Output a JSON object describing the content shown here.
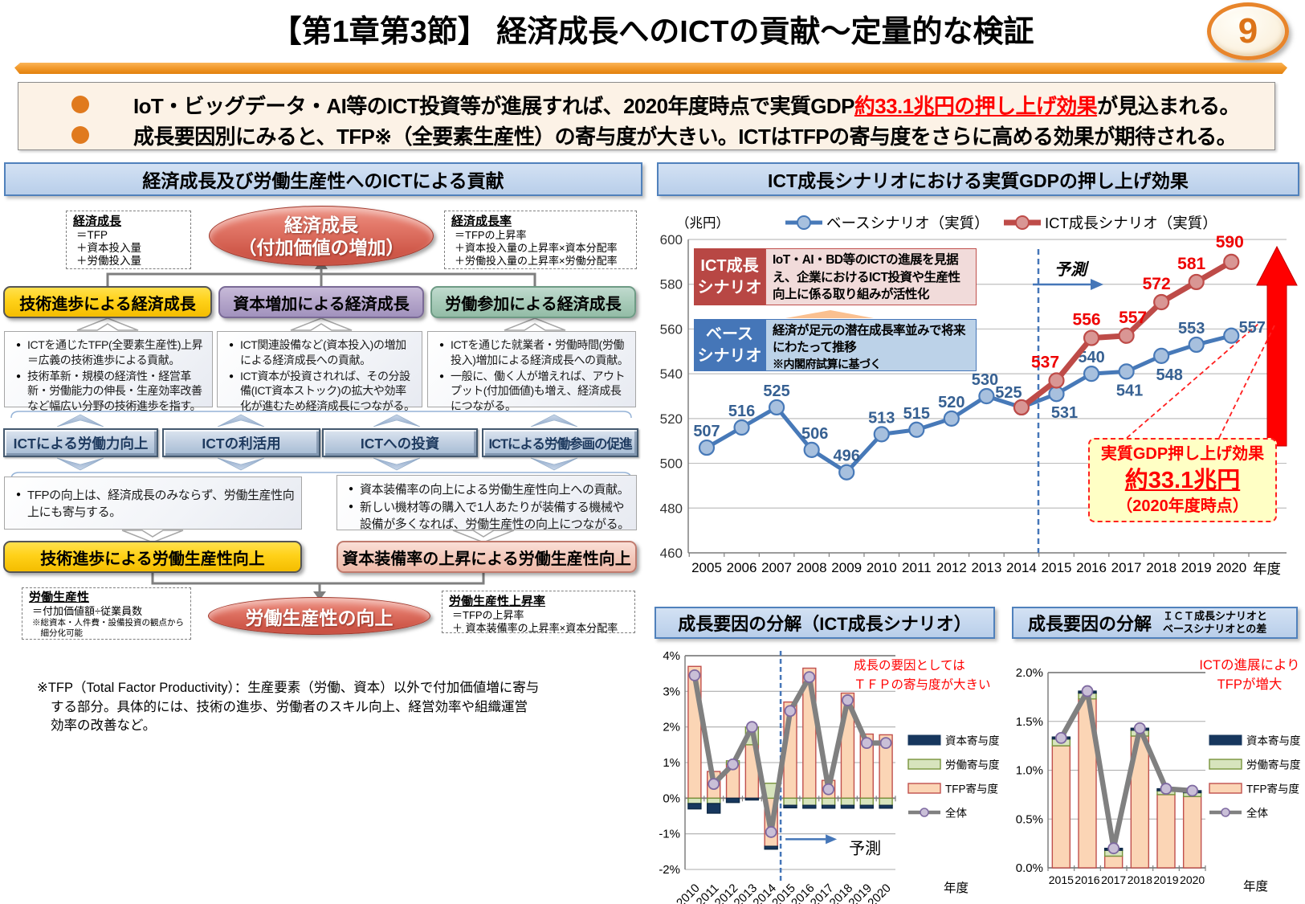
{
  "page": {
    "title": "【第1章第3節】 経済成長へのICTの貢献～定量的な検証",
    "page_number": "9"
  },
  "lead": {
    "bullet1_pre": "IoT・ビッグデータ・AI等のICT投資等が進展すれば、2020年度時点で実質GDP",
    "bullet1_highlight": "約33.1兆円の押し上げ効果",
    "bullet1_post": "が見込まれる。",
    "bullet2": "成長要因別にみると、TFP※（全要素生産性）の寄与度が大きい。ICTはTFPの寄与度をさらに高める効果が期待される。"
  },
  "left_panel": {
    "header": "経済成長及び労働生産性へのICTによる貢献",
    "formula_growth": {
      "title": "経済成長",
      "lines": [
        "＝TFP",
        "＋資本投入量",
        "＋労働投入量"
      ]
    },
    "formula_growth_rate": {
      "title": "経済成長率",
      "lines": [
        "＝TFPの上昇率",
        "＋資本投入量の上昇率×資本分配率",
        "＋労働投入量の上昇率×労働分配率"
      ]
    },
    "ellipse_top_line1": "経済成長",
    "ellipse_top_line2": "（付加価値の増加）",
    "factor_boxes": [
      {
        "label": "技術進歩による経済成長"
      },
      {
        "label": "資本増加による経済成長"
      },
      {
        "label": "労働参加による経済成長"
      }
    ],
    "detail_boxes": [
      {
        "items": [
          "ICTを通じたTFP(全要素生産性)上昇＝広義の技術進歩による貢献。",
          "技術革新・規模の経済性・経営革新・労働能力の伸長・生産効率改善など幅広い分野の技術進歩を指す。"
        ]
      },
      {
        "items": [
          "ICT関連設備など(資本投入)の増加による経済成長への貢献。",
          "ICT資本が投資されれば、その分設備(ICT資本ストック)の拡大や効率化が進むため経済成長につながる。"
        ]
      },
      {
        "items": [
          "ICTを通じた就業者・労働時間(労働投入)増加による経済成長への貢献。",
          "一般に、働く人が増えれば、アウトプット(付加価値)も増え、経済成長につながる。"
        ]
      }
    ],
    "ict_buttons": [
      "ICTによる労働力向上",
      "ICTの利活用",
      "ICTへの投資",
      "ICTによる労働参画の促進"
    ],
    "productivity_boxes": [
      {
        "items": [
          "TFPの向上は、経済成長のみならず、労働生産性向上にも寄与する。"
        ]
      },
      {
        "items": [
          "資本装備率の向上による労働生産性向上への貢献。",
          "新しい機材等の購入で1人あたりが装備する機械や設備が多くなれば、労働生産性の向上につながる。"
        ]
      }
    ],
    "productivity_factor_boxes": [
      "技術進歩による労働生産性向上",
      "資本装備率の上昇による労働生産性向上"
    ],
    "ellipse_bottom": "労働生産性の向上",
    "formula_productivity": {
      "title": "労働生産性",
      "lines": [
        "＝付加価値額÷従業員数"
      ],
      "small_lines": [
        "※総資本・人件費・設備投資の観点から",
        "　細分化可能"
      ]
    },
    "formula_productivity_rate": {
      "title": "労働生産性上昇率",
      "lines": [
        "＝TFPの上昇率",
        "＋ 資本装備率の上昇率×資本分配率"
      ]
    },
    "footnote_lines": [
      "※TFP（Total Factor Productivity）：生産要素（労働、資本）以外で付加価値増に寄与",
      "する部分。具体的には、技術の進歩、労働者のスキル向上、経営効率や組織運営",
      "効率の改善など。"
    ]
  },
  "right_panel": {
    "header": "ICT成長シナリオにおける実質GDPの押し上げ効果"
  },
  "decomp_ict_panel": {
    "header": "成長要因の分解（ICT成長シナリオ）"
  },
  "decomp_diff_panel": {
    "header": "成長要因の分解",
    "subtitle_line1": "ＩＣＴ成長シナリオと",
    "subtitle_line2": "ベースシナリオとの差"
  },
  "chart_data": [
    {
      "id": "gdp",
      "type": "line",
      "title": "ICT成長シナリオにおける実質GDPの押し上げ効果",
      "unit_label": "（兆円）",
      "xlabel": "年度",
      "ylim": [
        460,
        600
      ],
      "ytick_step": 20,
      "x": [
        2005,
        2006,
        2007,
        2008,
        2009,
        2010,
        2011,
        2012,
        2013,
        2014,
        2015,
        2016,
        2017,
        2018,
        2019,
        2020
      ],
      "series": [
        {
          "name": "ベースシナリオ（実質）",
          "color": "#4779B8",
          "marker_fill": "#A7C0DE",
          "label_color": "#366092",
          "start_index": 0,
          "values": [
            507,
            516,
            525,
            506,
            496,
            513,
            515,
            520,
            530,
            525,
            531,
            540,
            541,
            548,
            553,
            557
          ]
        },
        {
          "name": "ICT成長シナリオ（実質）",
          "color": "#BE4B48",
          "marker_fill": "#D99694",
          "label_color": "#EE0000",
          "start_index": 9,
          "values": [
            525,
            537,
            556,
            557,
            572,
            581,
            590
          ]
        }
      ],
      "forecast_label": "予測",
      "callouts": {
        "ict_tag": "ICT成長\nシナリオ",
        "ict_body": "IoT・AI・BD等のICTの進展を見据え、企業におけるICT投資や生産性向上に係る取り組みが活性化",
        "base_tag": "ベース\nシナリオ",
        "base_body": "経済が足元の潜在成長率並みで将来にわたって推移",
        "base_note": "※内閣府試算に基づく"
      },
      "effect_callout": {
        "line1": "実質GDP押し上げ効果",
        "line2": "約33.1兆円",
        "line3": "（2020年度時点）"
      }
    },
    {
      "id": "decomp_ict",
      "type": "stacked-bar-line",
      "title": "成長要因の分解（ICT成長シナリオ）",
      "xlabel": "年度",
      "ylim": [
        -2,
        4
      ],
      "ytick_step": 1,
      "x": [
        2010,
        2011,
        2012,
        2013,
        2014,
        2015,
        2016,
        2017,
        2018,
        2019,
        2020
      ],
      "bar_series": [
        {
          "name": "TFP寄与度",
          "fill": "#FBD5B5",
          "stroke": "#C0504D",
          "values": [
            3.7,
            0.75,
            0.95,
            1.5,
            -1.35,
            2.7,
            3.65,
            0.5,
            2.95,
            1.8,
            1.78
          ]
        },
        {
          "name": "労働寄与度",
          "fill": "#D7E4BD",
          "stroke": "#77933C",
          "values": [
            -0.15,
            -0.15,
            0.1,
            0.5,
            0.42,
            -0.2,
            -0.2,
            -0.2,
            -0.2,
            -0.2,
            -0.2
          ]
        },
        {
          "name": "資本寄与度",
          "fill": "#17375E",
          "stroke": "#0F2A47",
          "values": [
            -0.15,
            -0.27,
            -0.12,
            -0.05,
            -0.08,
            -0.07,
            -0.08,
            -0.08,
            -0.08,
            -0.08,
            -0.08
          ]
        }
      ],
      "line_series": {
        "name": "全体",
        "color": "#808080",
        "marker_fill": "#C9BFD7",
        "marker_stroke": "#7E69A0",
        "values": [
          3.45,
          0.4,
          0.95,
          2.0,
          -0.95,
          2.45,
          3.4,
          0.25,
          2.75,
          1.55,
          1.55
        ]
      },
      "legend_order": [
        "資本寄与度",
        "労働寄与度",
        "TFP寄与度",
        "全体"
      ],
      "annotation_lines": [
        "成長の要因としては",
        "ＴＦＰの寄与度が大きい"
      ],
      "forecast_label": "予測"
    },
    {
      "id": "decomp_diff",
      "type": "stacked-bar-line",
      "title": "成長要因の分解",
      "subtitle": "ＩＣＴ成長シナリオとベースシナリオとの差",
      "xlabel": "年度",
      "ylim": [
        0,
        2
      ],
      "ytick_step": 0.5,
      "x": [
        2015,
        2016,
        2017,
        2018,
        2019,
        2020
      ],
      "bar_series": [
        {
          "name": "TFP寄与度",
          "fill": "#FBD5B5",
          "stroke": "#C0504D",
          "values": [
            1.25,
            1.73,
            0.12,
            1.35,
            0.75,
            0.73
          ]
        },
        {
          "name": "労働寄与度",
          "fill": "#D7E4BD",
          "stroke": "#77933C",
          "values": [
            0.07,
            0.06,
            0.06,
            0.06,
            0.04,
            0.04
          ]
        },
        {
          "name": "資本寄与度",
          "fill": "#17375E",
          "stroke": "#0F2A47",
          "values": [
            0.02,
            0.02,
            0.02,
            0.02,
            0.02,
            0.02
          ]
        }
      ],
      "line_series": {
        "name": "全体",
        "color": "#808080",
        "marker_fill": "#C9BFD7",
        "marker_stroke": "#7E69A0",
        "values": [
          1.33,
          1.81,
          0.2,
          1.43,
          0.81,
          0.79
        ]
      },
      "legend_order": [
        "資本寄与度",
        "労働寄与度",
        "TFP寄与度",
        "全体"
      ],
      "annotation_lines": [
        "ICTの進展により",
        "TFPが増大"
      ]
    }
  ]
}
